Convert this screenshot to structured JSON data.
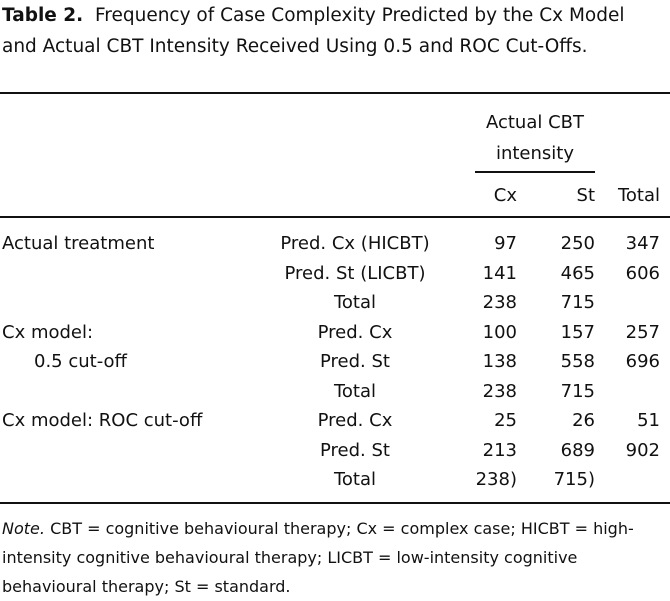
{
  "caption": {
    "label": "Table 2.",
    "text": "Frequency of Case Complexity Predicted by the Cx Model and Actual CBT Intensity Received Using 0.5 and ROC Cut-Offs."
  },
  "table": {
    "header": {
      "group": "Actual CBT intensity",
      "columns": [
        "Cx",
        "St",
        "Total"
      ]
    },
    "rows": [
      [
        "Actual treatment",
        "Pred. Cx (HICBT)",
        "97",
        "250",
        "347"
      ],
      [
        null,
        "Pred. St (LICBT)",
        "141",
        "465",
        "606"
      ],
      [
        null,
        "Total",
        "238",
        "715",
        null
      ],
      [
        "Cx model:",
        "Pred. Cx",
        "100",
        "157",
        "257"
      ],
      [
        "0.5 cut-off",
        "Pred. St",
        "138",
        "558",
        "696"
      ],
      [
        null,
        "Total",
        "238",
        "715",
        null
      ],
      [
        "Cx model: ROC cut-off",
        "Pred. Cx",
        "25",
        "26",
        "51"
      ],
      [
        null,
        "Pred. St",
        "213",
        "689",
        "902"
      ],
      [
        null,
        "Total",
        "238)",
        "715)",
        null
      ]
    ]
  },
  "note": {
    "label": "Note.",
    "text": "CBT = cognitive behavioural therapy; Cx = complex case; HICBT = high-intensity cognitive behavioural therapy; LICBT = low-intensity cognitive behavioural therapy; St = standard."
  }
}
